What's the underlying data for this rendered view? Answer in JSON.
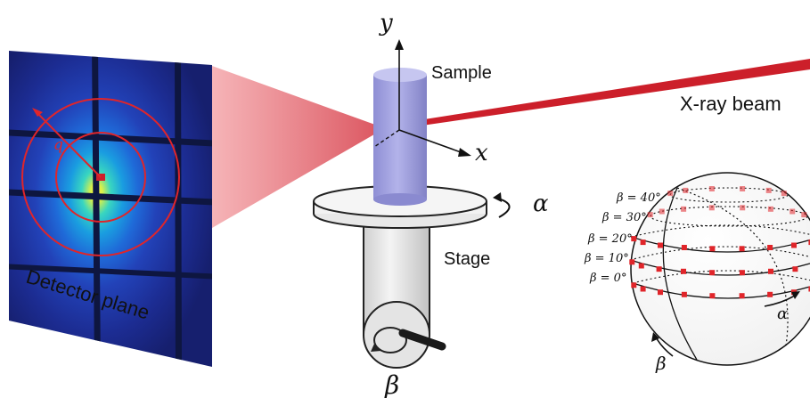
{
  "labels": {
    "detector_plane": "Detector plane",
    "sample": "Sample",
    "stage": "Stage",
    "xray_beam": "X-ray beam",
    "axis_x": "x",
    "axis_y": "y",
    "q": "q",
    "alpha_stage": "α",
    "beta_stage": "β",
    "alpha_sphere": "α",
    "beta_sphere": "β"
  },
  "sphere_latitudes": [
    {
      "label": "β = 40°",
      "beta": 40
    },
    {
      "label": "β = 30°",
      "beta": 30
    },
    {
      "label": "β = 20°",
      "beta": 20
    },
    {
      "label": "β = 10°",
      "beta": 10
    },
    {
      "label": "β = 0°",
      "beta": 0
    }
  ],
  "colors": {
    "beam": "#cc1f2a",
    "cylinder": "#a6a6de",
    "marker": "#e0252a",
    "detector_bg": "#1a2fa8"
  }
}
